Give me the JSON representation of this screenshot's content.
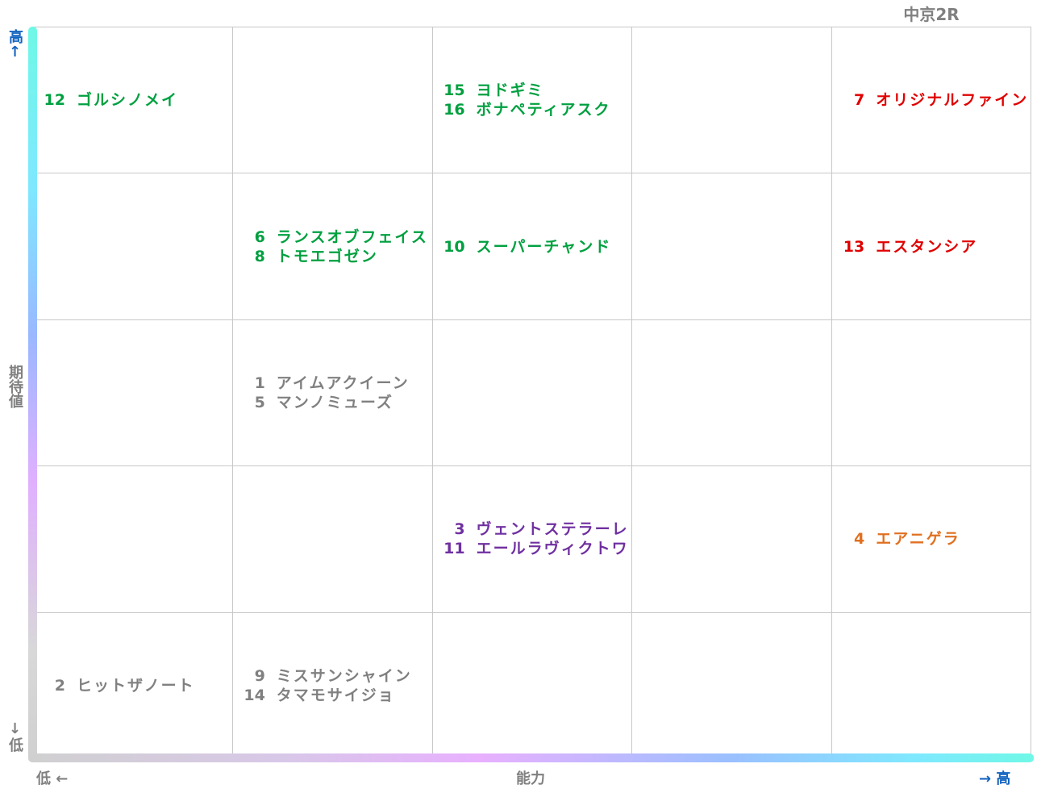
{
  "header": {
    "title": "中京2R"
  },
  "axes": {
    "y_high": "高↑",
    "y_label": "期待値",
    "y_low": "↓低",
    "x_low": "低 ←",
    "x_label": "能力",
    "x_high": "→ 高",
    "high_color": "#1565c0",
    "label_color": "#808080"
  },
  "grid": {
    "rows": [
      [
        [
          {
            "number": "12",
            "name": "ゴルシノメイ",
            "color": "#00a040"
          }
        ],
        [],
        [
          {
            "number": "15",
            "name": "ヨドギミ",
            "color": "#00a040"
          },
          {
            "number": "16",
            "name": "ボナペティアスク",
            "color": "#00a040"
          }
        ],
        [],
        [
          {
            "number": "7",
            "name": "オリジナルファイン",
            "color": "#e00000"
          }
        ]
      ],
      [
        [],
        [
          {
            "number": "6",
            "name": "ランスオブフェイス",
            "color": "#00a040"
          },
          {
            "number": "8",
            "name": "トモエゴゼン",
            "color": "#00a040"
          }
        ],
        [
          {
            "number": "10",
            "name": "スーパーチャンド",
            "color": "#00a040"
          }
        ],
        [],
        [
          {
            "number": "13",
            "name": "エスタンシア",
            "color": "#e00000"
          }
        ]
      ],
      [
        [],
        [
          {
            "number": "1",
            "name": "アイムアクイーン",
            "color": "#808080"
          },
          {
            "number": "5",
            "name": "マンノミューズ",
            "color": "#808080"
          }
        ],
        [],
        [],
        []
      ],
      [
        [],
        [],
        [
          {
            "number": "3",
            "name": "ヴェントステラーレ",
            "color": "#7030a0"
          },
          {
            "number": "11",
            "name": "エールラヴィクトワ",
            "color": "#7030a0"
          }
        ],
        [],
        [
          {
            "number": "4",
            "name": "エアニゲラ",
            "color": "#e07020"
          }
        ]
      ],
      [
        [
          {
            "number": "2",
            "name": "ヒットザノート",
            "color": "#808080"
          }
        ],
        [
          {
            "number": "9",
            "name": "ミスサンシャイン",
            "color": "#808080"
          },
          {
            "number": "14",
            "name": "タマモサイジョ",
            "color": "#808080"
          }
        ],
        [],
        [],
        []
      ]
    ]
  }
}
